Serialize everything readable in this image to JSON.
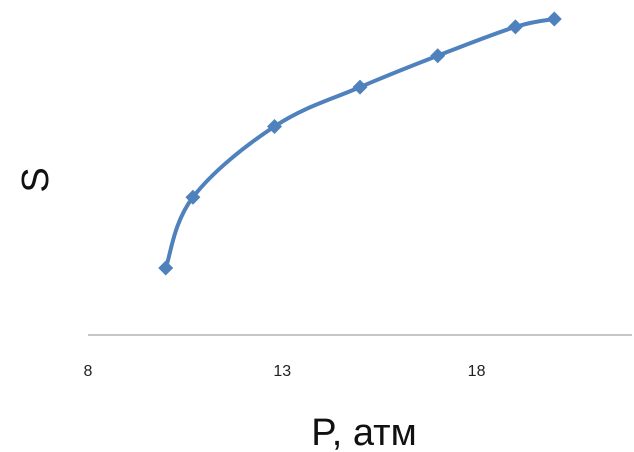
{
  "chart_data": {
    "type": "line",
    "title": "",
    "xlabel": "P, атм",
    "ylabel": "S",
    "xlim": [
      8,
      22
    ],
    "x_ticks": [
      "8",
      "13",
      "18"
    ],
    "x_tick_values": [
      8,
      13,
      18
    ],
    "y_axis_visible": false,
    "grid": false,
    "legend": "none",
    "series": [
      {
        "color": "#4F81BD",
        "marker": "diamond",
        "smooth": true,
        "points": [
          {
            "x": 10,
            "y": 0.0
          },
          {
            "x": 10.7,
            "y": 0.27
          },
          {
            "x": 12.8,
            "y": 0.54
          },
          {
            "x": 15.0,
            "y": 0.69
          },
          {
            "x": 17.0,
            "y": 0.81
          },
          {
            "x": 19.0,
            "y": 0.92
          },
          {
            "x": 20.0,
            "y": 0.95
          }
        ]
      }
    ]
  }
}
